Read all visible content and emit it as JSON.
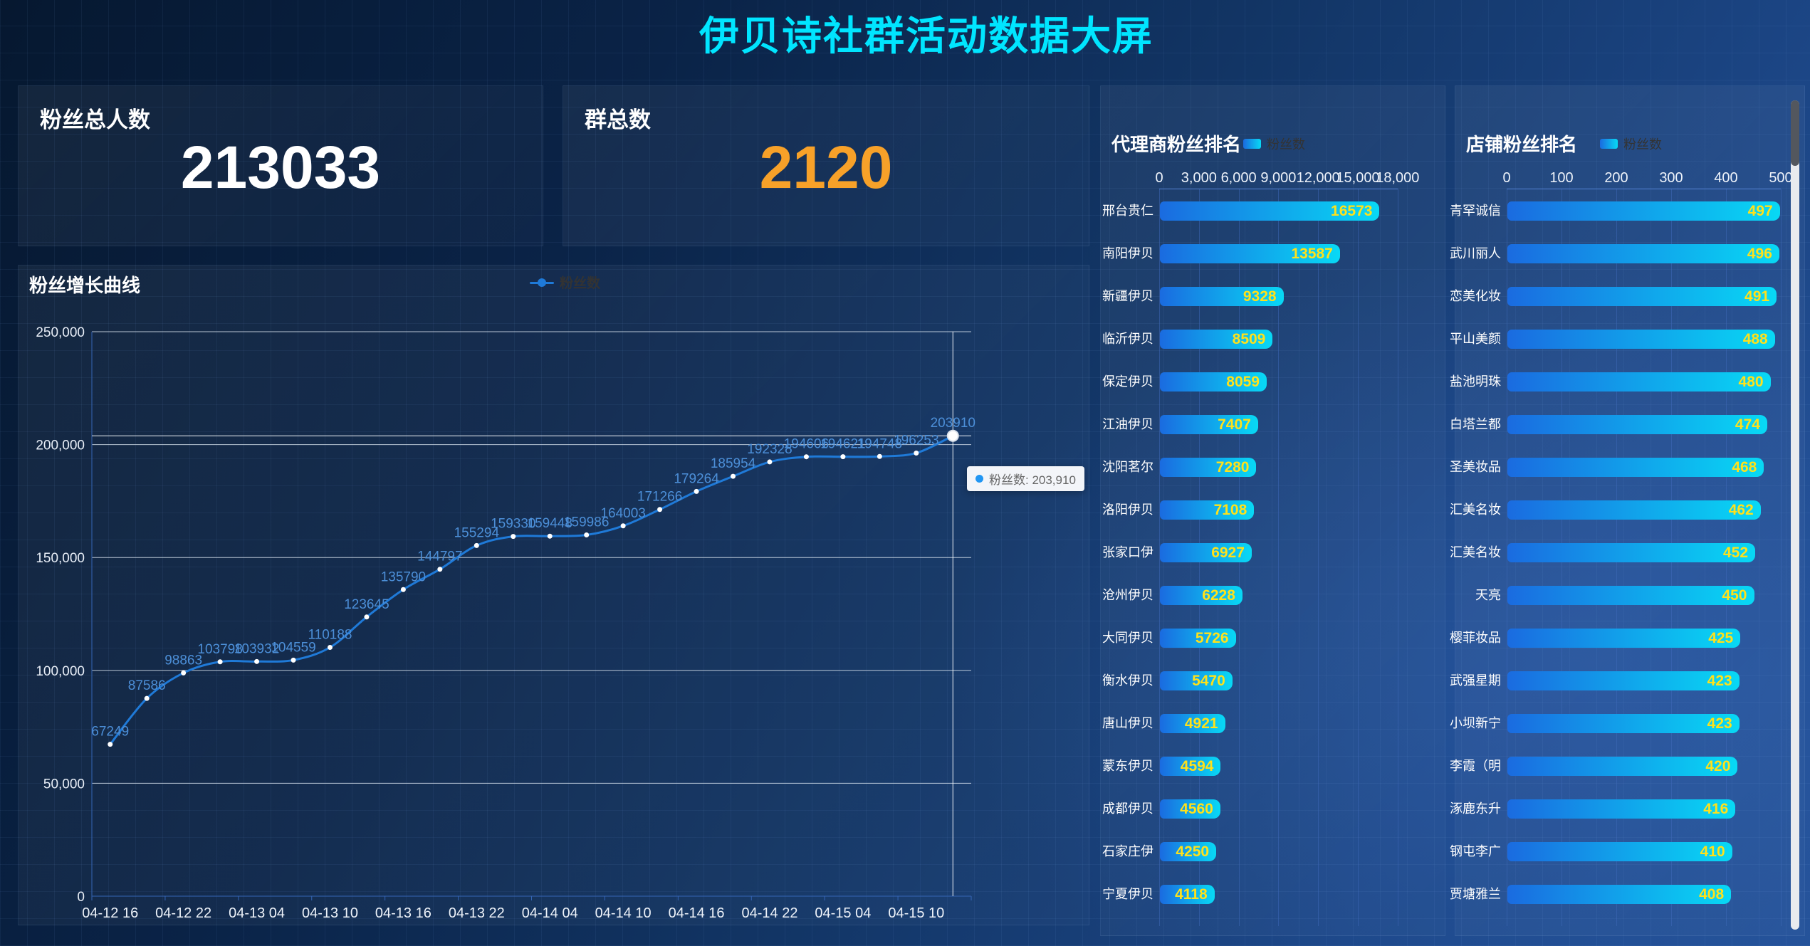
{
  "title": "伊贝诗社群活动数据大屏",
  "stats": {
    "fans_total": {
      "label": "粉丝总人数",
      "value": "213033"
    },
    "groups_total": {
      "label": "群总数",
      "value": "2120"
    }
  },
  "colors": {
    "title_cyan": "#00e5ff",
    "value_white": "#ffffff",
    "value_orange": "#f7a129",
    "line_blue": "#1f7ad8",
    "point_label_blue": "#4c8fd8",
    "bar_gradient_start": "#1a6be0",
    "bar_gradient_end": "#08d9f5",
    "bar_value_yellow": "#ffe11a"
  },
  "chart_data": [
    {
      "id": "fan_growth",
      "type": "line",
      "title": "粉丝增长曲线",
      "legend": [
        "粉丝数"
      ],
      "series": [
        {
          "name": "粉丝数",
          "values": [
            67249,
            87586,
            98863,
            103798,
            103932,
            104559,
            110188,
            123645,
            135790,
            144797,
            155294,
            159330,
            159448,
            159986,
            164003,
            171266,
            179264,
            185954,
            192328,
            194606,
            194621,
            194748,
            196253,
            203910
          ]
        }
      ],
      "x_tick_labels": [
        "04-12 16",
        "04-12 22",
        "04-13 04",
        "04-13 10",
        "04-13 16",
        "04-13 22",
        "04-14 04",
        "04-14 10",
        "04-14 16",
        "04-14 22",
        "04-15 04",
        "04-15 10"
      ],
      "x_label_every_n_points": 2,
      "ylim": [
        0,
        250000
      ],
      "y_tick_labels": [
        "0",
        "50,000",
        "100,000",
        "150,000",
        "200,000",
        "250,000"
      ],
      "grid": true,
      "smooth": true,
      "legend_position": "top-center",
      "highlight": {
        "index": 23,
        "tooltip": "粉丝数: 203,910",
        "crosshair": true
      }
    },
    {
      "id": "agent_ranking",
      "type": "bar",
      "orientation": "horizontal",
      "title": "代理商粉丝排名",
      "legend": [
        "粉丝数"
      ],
      "categories": [
        "邢台贵仁",
        "南阳伊贝",
        "新疆伊贝",
        "临沂伊贝",
        "保定伊贝",
        "江油伊贝",
        "沈阳茗尔",
        "洛阳伊贝",
        "张家口伊",
        "沧州伊贝",
        "大同伊贝",
        "衡水伊贝",
        "唐山伊贝",
        "蒙东伊贝",
        "成都伊贝",
        "石家庄伊",
        "宁夏伊贝"
      ],
      "values": [
        16573,
        13587,
        9328,
        8509,
        8059,
        7407,
        7280,
        7108,
        6927,
        6228,
        5726,
        5470,
        4921,
        4594,
        4560,
        4250,
        4118
      ],
      "xlim": [
        0,
        18000
      ],
      "x_tick_labels": [
        "0",
        "3,000",
        "6,000",
        "9,000",
        "12,000",
        "15,000",
        "18,000"
      ],
      "grid": true
    },
    {
      "id": "store_ranking",
      "type": "bar",
      "orientation": "horizontal",
      "title": "店铺粉丝排名",
      "legend": [
        "粉丝数"
      ],
      "categories": [
        "青罕诚信",
        "武川丽人",
        "恋美化妆",
        "平山美颜",
        "盐池明珠",
        "白塔兰都",
        "圣美妆品",
        "汇美名妆",
        "汇美名妆",
        "天亮",
        "樱菲妆品",
        "武强星期",
        "小坝新宁",
        "李霞（明",
        "涿鹿东升",
        "钢屯李广",
        "贾塘雅兰"
      ],
      "values": [
        497,
        496,
        491,
        488,
        480,
        474,
        468,
        462,
        452,
        450,
        425,
        423,
        423,
        420,
        416,
        410,
        408
      ],
      "xlim": [
        0,
        500
      ],
      "x_tick_labels": [
        "0",
        "100",
        "200",
        "300",
        "400",
        "500"
      ],
      "grid": true,
      "scrollbar": true
    }
  ]
}
